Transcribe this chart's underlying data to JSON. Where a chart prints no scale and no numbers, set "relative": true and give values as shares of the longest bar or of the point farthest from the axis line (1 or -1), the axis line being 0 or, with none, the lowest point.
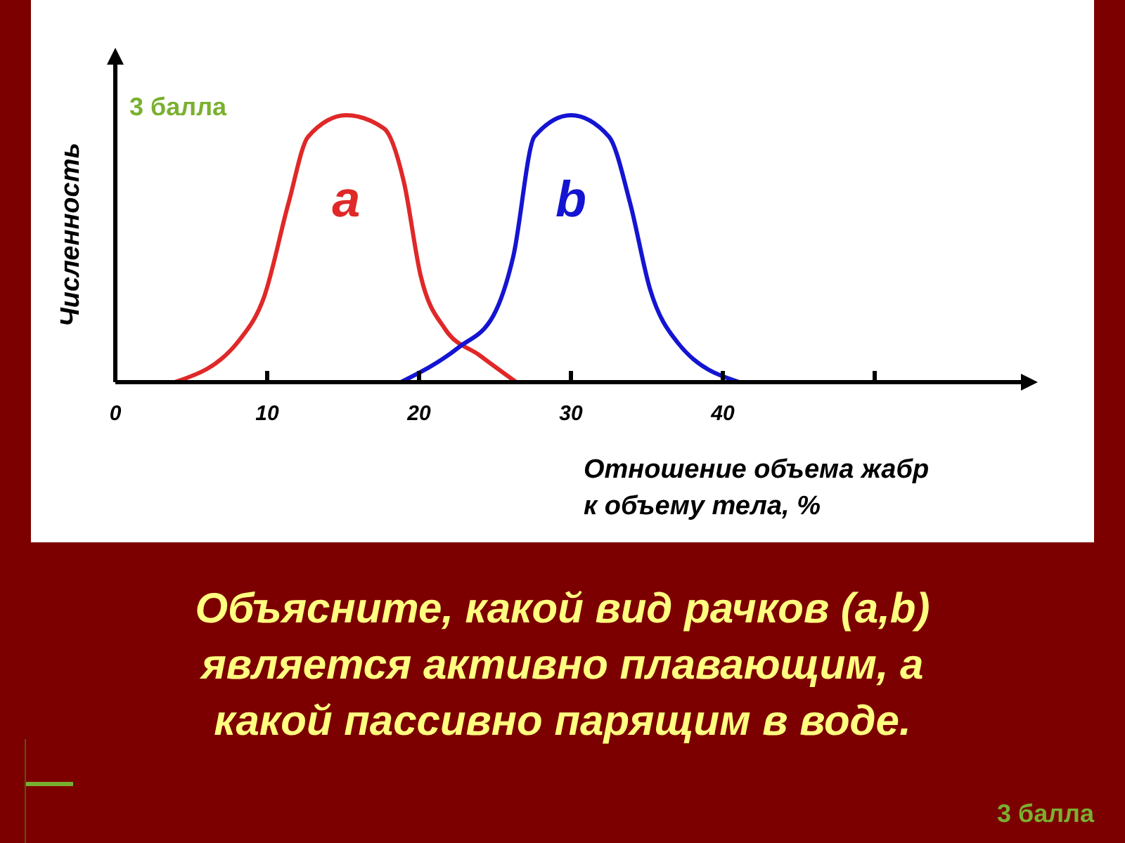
{
  "chart_data": {
    "type": "line",
    "relative": true,
    "ylabel": "Численность",
    "xlabel": "Отношение объема жабр\nк объему тела, %",
    "xlim": [
      0,
      60
    ],
    "xticks": [
      0,
      10,
      20,
      30,
      40,
      {
        "value": 50,
        "label": null
      }
    ],
    "grid": false,
    "marker": "none",
    "line_style": "solid",
    "series": [
      {
        "name": "a",
        "color": "#e02828",
        "x": [
          3.9,
          8.2,
          9.8,
          11.4,
          12.7,
          15.2,
          17.7,
          19.0,
          20.1,
          21.7,
          24.0,
          26.4
        ],
        "values": [
          0,
          0.16,
          0.32,
          0.67,
          0.92,
          1,
          0.95,
          0.75,
          0.4,
          0.2,
          0.1,
          0
        ]
      },
      {
        "name": "b",
        "color": "#1414d2",
        "x": [
          18.8,
          22.6,
          24.9,
          26.2,
          27.6,
          30,
          32.5,
          33.9,
          35.2,
          37.0,
          41.1
        ],
        "values": [
          0,
          0.13,
          0.25,
          0.47,
          0.92,
          1,
          0.92,
          0.67,
          0.35,
          0.15,
          0
        ]
      }
    ],
    "annotations": [
      "3 балла",
      "Объясните, какой вид рачков (a,b)\nявляется активно плавающим, а\nкакой пассивно парящим в воде.",
      "3 балла"
    ]
  }
}
